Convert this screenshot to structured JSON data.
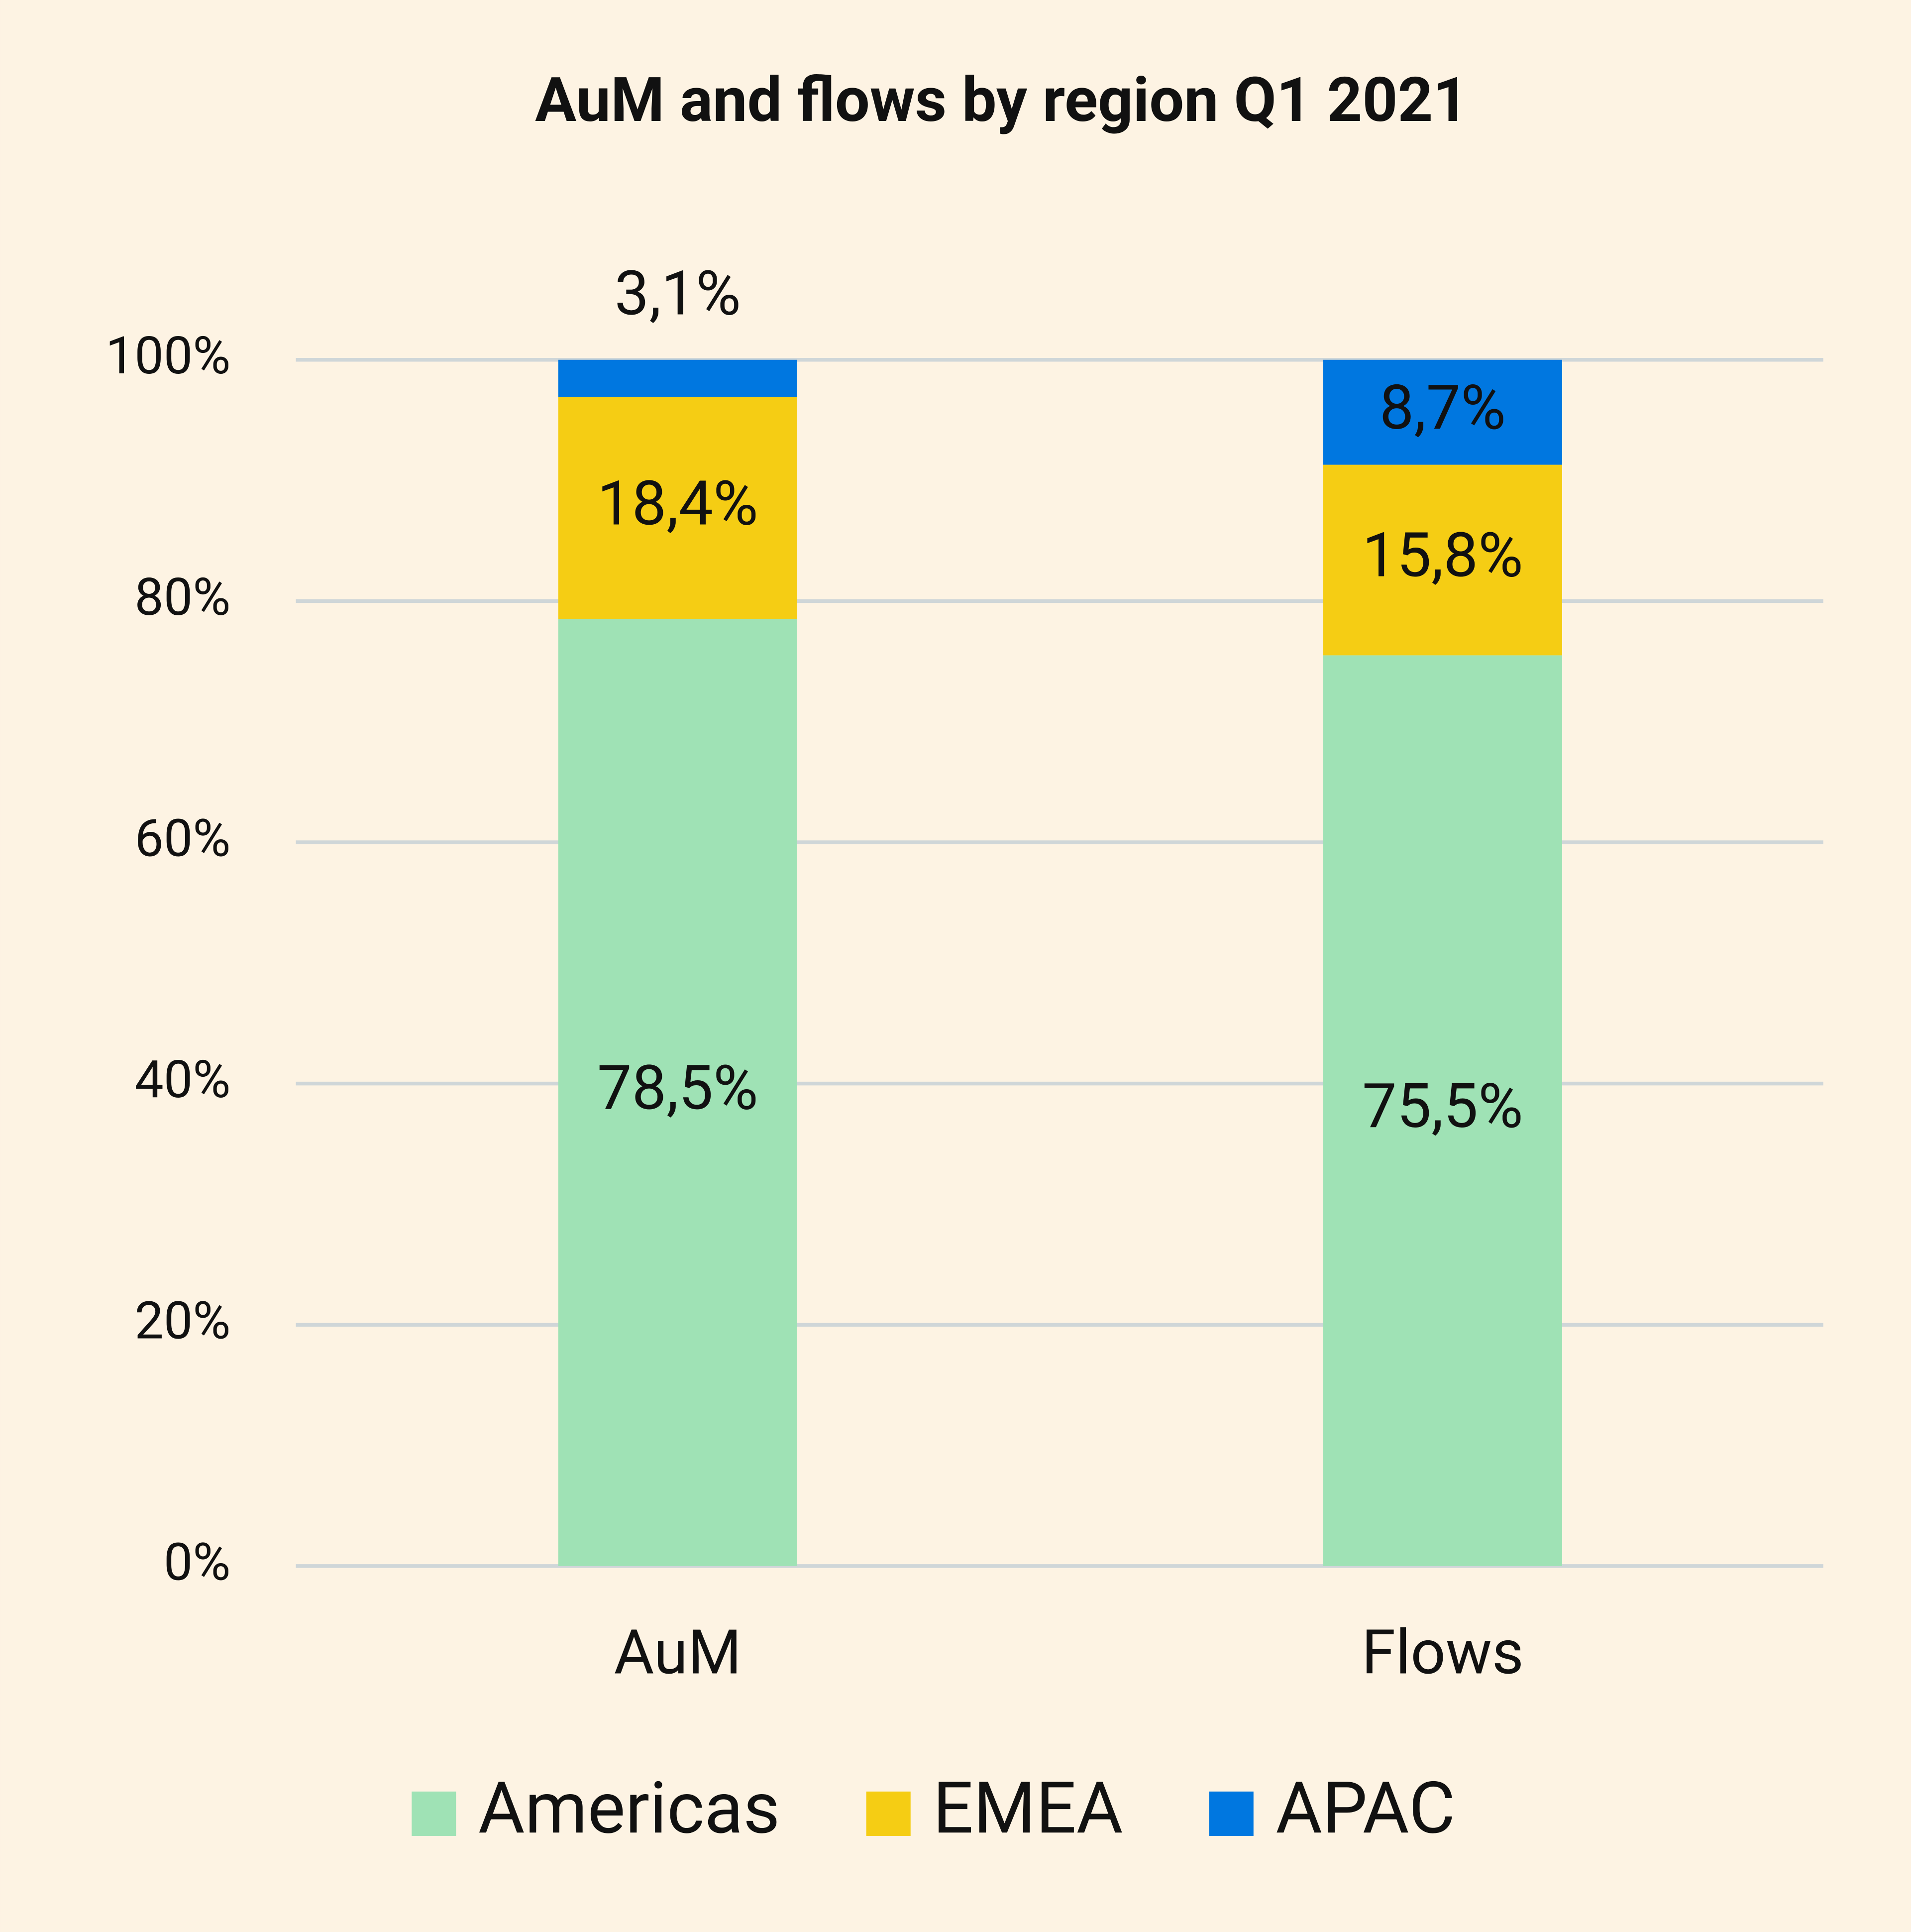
{
  "chart_data": {
    "type": "stacked_bar",
    "title": "AuM and flows by region Q1 2021",
    "categories": [
      "AuM",
      "Flows"
    ],
    "series": [
      {
        "name": "Americas",
        "color": "#9fe2b5",
        "values": [
          78.5,
          75.5
        ],
        "value_labels": [
          "78,5%",
          "75,5%"
        ]
      },
      {
        "name": "EMEA",
        "color": "#f5cd14",
        "values": [
          18.4,
          15.8
        ],
        "value_labels": [
          "18,4%",
          "15,8%"
        ]
      },
      {
        "name": "APAC",
        "color": "#0077e0",
        "values": [
          3.1,
          8.7
        ],
        "value_labels": [
          "3,1%",
          "8,7%"
        ]
      }
    ],
    "ylim": [
      0,
      100
    ],
    "yticks": [
      {
        "value": 0,
        "label": "0%"
      },
      {
        "value": 20,
        "label": "20%"
      },
      {
        "value": 40,
        "label": "40%"
      },
      {
        "value": 60,
        "label": "60%"
      },
      {
        "value": 80,
        "label": "80%"
      },
      {
        "value": 100,
        "label": "100%"
      }
    ],
    "grid": true,
    "legend": "bottom"
  }
}
